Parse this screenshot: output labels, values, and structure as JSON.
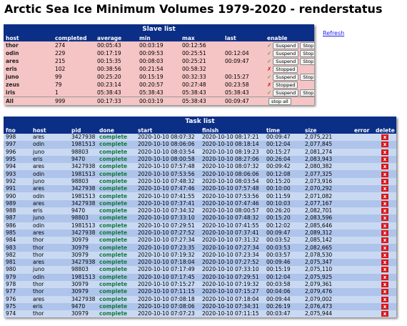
{
  "header": {
    "title": "Arctic Sea Ice Minimum Volumes 1979-2020 - renderstatus",
    "refresh": "Refresh"
  },
  "slave_list": {
    "title": "Slave list",
    "headers": [
      "host",
      "completed",
      "average",
      "min",
      "max",
      "last",
      "enable"
    ],
    "rows": [
      {
        "cells": [
          "thor",
          "274",
          "00:05:43",
          "00:03:19",
          "00:12:56",
          null
        ],
        "status": "✓",
        "buttons": [
          "Suspend",
          "Stop"
        ]
      },
      {
        "cells": [
          "odin",
          "229",
          "00:17:19",
          "00:09:53",
          "00:25:51",
          "00:12:04"
        ],
        "status": "✓",
        "buttons": [
          "Suspend",
          "Stop"
        ]
      },
      {
        "cells": [
          "ares",
          "215",
          "00:15:35",
          "00:08:03",
          "00:25:21",
          "00:09:47"
        ],
        "status": "✓",
        "buttons": [
          "Suspend",
          "Stop"
        ]
      },
      {
        "cells": [
          "eris",
          "102",
          "00:38:56",
          "00:21:54",
          "00:58:32",
          null
        ],
        "status": "✗",
        "buttons": [
          "Stopped"
        ]
      },
      {
        "cells": [
          "juno",
          "99",
          "00:25:20",
          "00:15:19",
          "00:32:33",
          "00:15:27"
        ],
        "status": "✓",
        "buttons": [
          "Suspend",
          "Stop"
        ]
      },
      {
        "cells": [
          "zeus",
          "79",
          "00:23:14",
          "00:20:57",
          "00:27:48",
          "00:23:58"
        ],
        "status": "✗",
        "buttons": [
          "Stopped"
        ]
      },
      {
        "cells": [
          "iris",
          "1",
          "05:38:43",
          "05:38:43",
          "05:38:43",
          "05:38:43"
        ],
        "status": "✓",
        "buttons": [
          "Suspend",
          "Stop"
        ]
      },
      {
        "cells": [
          "All",
          "999",
          "00:17:33",
          "00:03:19",
          "05:38:43",
          "00:09:47"
        ],
        "status": null,
        "buttons": [
          "stop all"
        ]
      }
    ]
  },
  "task_list": {
    "title": "Task list",
    "delete_button": "x",
    "headers": [
      "fno",
      "host",
      "pid",
      "done",
      "start",
      "finish",
      "time",
      "size",
      "error",
      "delete"
    ],
    "rows": [
      [
        "998",
        "ares",
        "3427938",
        "complete",
        "2020-10-10 08:07:32",
        "2020-10-10 08:17:21",
        "00:09:47",
        "2,075,221"
      ],
      [
        "997",
        "odin",
        "1981513",
        "complete",
        "2020-10-10 08:06:06",
        "2020-10-10 08:18:14",
        "00:12:04",
        "2,077,845"
      ],
      [
        "996",
        "juno",
        "98803",
        "complete",
        "2020-10-10 08:03:54",
        "2020-10-10 08:19:23",
        "00:15:27",
        "2,081,274"
      ],
      [
        "995",
        "eris",
        "9470",
        "complete",
        "2020-10-10 08:00:58",
        "2020-10-10 08:27:06",
        "00:26:04",
        "2,083,943"
      ],
      [
        "994",
        "ares",
        "3427938",
        "complete",
        "2020-10-10 07:57:48",
        "2020-10-10 08:07:32",
        "00:09:42",
        "2,080,382"
      ],
      [
        "993",
        "odin",
        "1981513",
        "complete",
        "2020-10-10 07:53:56",
        "2020-10-10 08:06:06",
        "00:12:08",
        "2,077,325"
      ],
      [
        "992",
        "juno",
        "98803",
        "complete",
        "2020-10-10 07:48:32",
        "2020-10-10 08:03:54",
        "00:15:20",
        "2,073,916"
      ],
      [
        "991",
        "ares",
        "3427938",
        "complete",
        "2020-10-10 07:47:46",
        "2020-10-10 07:57:48",
        "00:10:00",
        "2,070,292"
      ],
      [
        "990",
        "odin",
        "1981513",
        "complete",
        "2020-10-10 07:41:55",
        "2020-10-10 07:53:56",
        "00:11:59",
        "2,071,082"
      ],
      [
        "989",
        "ares",
        "3427938",
        "complete",
        "2020-10-10 07:37:41",
        "2020-10-10 07:47:46",
        "00:10:03",
        "2,077,167"
      ],
      [
        "988",
        "eris",
        "9470",
        "complete",
        "2020-10-10 07:34:32",
        "2020-10-10 08:00:57",
        "00:26:20",
        "2,082,701"
      ],
      [
        "987",
        "juno",
        "98803",
        "complete",
        "2020-10-10 07:33:10",
        "2020-10-10 07:48:32",
        "00:15:20",
        "2,083,596"
      ],
      [
        "986",
        "odin",
        "1981513",
        "complete",
        "2020-10-10 07:29:51",
        "2020-10-10 07:41:55",
        "00:12:02",
        "2,085,646"
      ],
      [
        "985",
        "ares",
        "3427938",
        "complete",
        "2020-10-10 07:27:52",
        "2020-10-10 07:37:41",
        "00:09:47",
        "2,089,312"
      ],
      [
        "984",
        "thor",
        "30979",
        "complete",
        "2020-10-10 07:27:34",
        "2020-10-10 07:31:32",
        "00:03:52",
        "2,085,142"
      ],
      [
        "983",
        "thor",
        "30979",
        "complete",
        "2020-10-10 07:23:35",
        "2020-10-10 07:27:34",
        "00:03:53",
        "2,082,665"
      ],
      [
        "982",
        "thor",
        "30979",
        "complete",
        "2020-10-10 07:19:32",
        "2020-10-10 07:23:34",
        "00:03:57",
        "2,078,530"
      ],
      [
        "981",
        "ares",
        "3427938",
        "complete",
        "2020-10-10 07:18:04",
        "2020-10-10 07:27:52",
        "00:09:46",
        "2,075,347"
      ],
      [
        "980",
        "juno",
        "98803",
        "complete",
        "2020-10-10 07:17:49",
        "2020-10-10 07:33:10",
        "00:15:19",
        "2,075,110"
      ],
      [
        "979",
        "odin",
        "1981513",
        "complete",
        "2020-10-10 07:17:45",
        "2020-10-10 07:29:51",
        "00:12:04",
        "2,075,925"
      ],
      [
        "978",
        "thor",
        "30979",
        "complete",
        "2020-10-10 07:15:27",
        "2020-10-10 07:19:32",
        "00:03:58",
        "2,079,361"
      ],
      [
        "977",
        "thor",
        "30979",
        "complete",
        "2020-10-10 07:11:15",
        "2020-10-10 07:15:27",
        "00:04:06",
        "2,079,476"
      ],
      [
        "976",
        "ares",
        "3427938",
        "complete",
        "2020-10-10 07:08:18",
        "2020-10-10 07:18:04",
        "00:09:44",
        "2,079,002"
      ],
      [
        "975",
        "eris",
        "9470",
        "complete",
        "2020-10-10 07:08:06",
        "2020-10-10 07:34:31",
        "00:26:19",
        "2,076,473"
      ],
      [
        "974",
        "thor",
        "30979",
        "complete",
        "2020-10-10 07:07:23",
        "2020-10-10 07:11:15",
        "00:03:47",
        "2,075,944"
      ]
    ]
  }
}
